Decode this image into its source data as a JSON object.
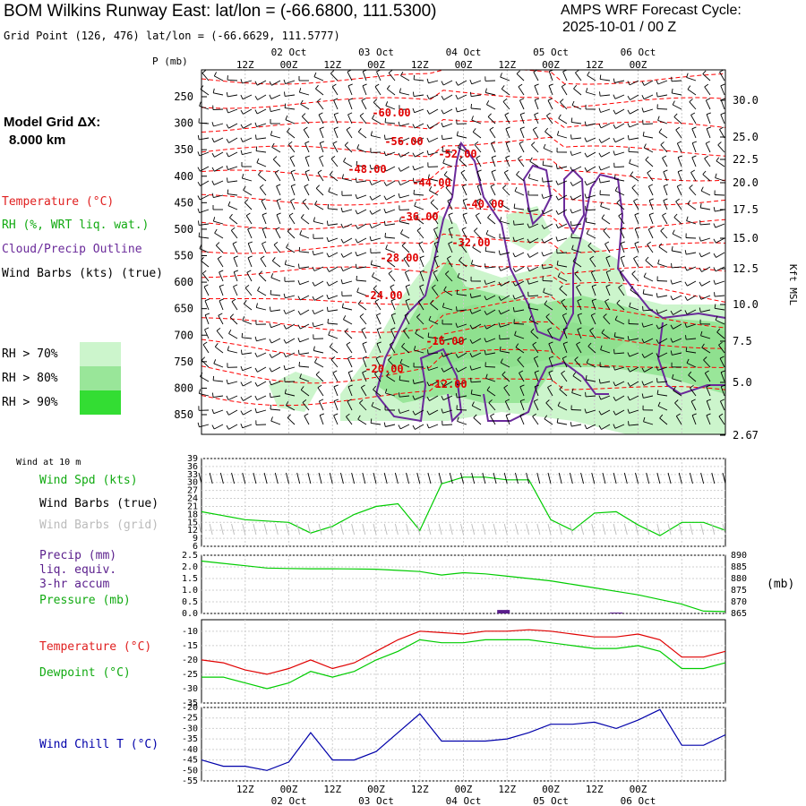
{
  "header": {
    "title": "BOM Wilkins Runway East:  lat/lon = (-66.6800, 111.5300)",
    "subtitle": "Grid Point (126, 476) lat/lon = (-66.6629, 111.5777)",
    "forecast_line1": "AMPS WRF Forecast Cycle:",
    "forecast_line2": "2025-10-01 / 00  Z"
  },
  "model_grid": {
    "label": "Model Grid ΔX:",
    "value": "8.000 km"
  },
  "legend": {
    "temperature": "Temperature (°C)",
    "rh": "RH (%, WRT liq. wat.)",
    "cloud": "Cloud/Precip Outline",
    "wind": "Wind Barbs (kts) (true)",
    "rh70": "RH > 70%",
    "rh80": "RH > 80%",
    "rh90": "RH > 90%"
  },
  "colors": {
    "temperature": "#ff0000",
    "rh": "#00aa00",
    "cloud": "#6a2a9a",
    "precip": "#5a1e8c",
    "pressure": "#00cc00",
    "dewpoint": "#00cc00",
    "windchill": "#0000aa",
    "rh70": "#ccf5cc",
    "rh80": "#99e699",
    "rh90": "#33dd33"
  },
  "time_axis": {
    "hours_labels": [
      "12Z",
      "00Z",
      "12Z",
      "00Z",
      "12Z",
      "00Z",
      "12Z",
      "00Z",
      "12Z",
      "00Z"
    ],
    "day_labels": [
      "02 Oct",
      "03 Oct",
      "04 Oct",
      "05 Oct",
      "06 Oct"
    ]
  },
  "chart_data": [
    {
      "type": "contour",
      "name": "cross-section",
      "yaxis_label": "P (mb)",
      "pressure_ticks": [
        "250",
        "300",
        "350",
        "400",
        "450",
        "500",
        "550",
        "600",
        "650",
        "700",
        "750",
        "800",
        "850"
      ],
      "right_axis_label": "Kft MSL",
      "height_ticks": [
        "30.0",
        "25.0",
        "22.5",
        "20.0",
        "17.5",
        "15.0",
        "12.5",
        "10.0",
        "7.5",
        "5.0",
        "2.67"
      ],
      "temperature_labels": [
        "-60.00",
        "-56.00",
        "-52.00",
        "-48.00",
        "-44.00",
        "-40.00",
        "-36.00",
        "-32.00",
        "-28.00",
        "-24.00",
        "-16.00",
        "-20.00",
        "-12.00"
      ]
    },
    {
      "type": "line",
      "name": "wind",
      "title": "Wind at 10 m",
      "labels": [
        "Wind Spd (kts)",
        "Wind Barbs (true)",
        "Wind Barbs (grid)"
      ],
      "yticks": [
        "39",
        "36",
        "33",
        "30",
        "27",
        "24",
        "21",
        "18",
        "15",
        "12",
        "9",
        "6"
      ],
      "ylim": [
        6,
        39
      ],
      "x_hours": [
        0,
        6,
        12,
        18,
        24,
        30,
        36,
        42,
        48,
        54,
        60,
        66,
        72,
        78,
        84,
        90,
        96,
        102,
        108,
        114,
        120,
        126,
        132,
        138,
        144
      ],
      "wind_speed": [
        19,
        17.5,
        16,
        15.5,
        15,
        11,
        13.5,
        18,
        21,
        22,
        12,
        29.5,
        32,
        32,
        31,
        31,
        16,
        12,
        18.5,
        19,
        14,
        10,
        15,
        15,
        12
      ]
    },
    {
      "type": "line",
      "name": "precip-pressure",
      "labels": [
        "Precip (mm)",
        "liq. equiv.",
        "3-hr accum",
        "Pressure (mb)"
      ],
      "left_ticks": [
        "2.5",
        "2.0",
        "1.5",
        "1.0",
        "0.5",
        "0.0"
      ],
      "right_ticks": [
        "890",
        "885",
        "880",
        "875",
        "870",
        "865"
      ],
      "right_unit": "(mb)",
      "precip_ylim": [
        0,
        2.5
      ],
      "pressure_ylim": [
        865,
        890
      ],
      "x_hours": [
        0,
        6,
        12,
        18,
        24,
        30,
        36,
        42,
        48,
        54,
        60,
        66,
        72,
        78,
        84,
        90,
        96,
        102,
        108,
        114,
        120,
        126,
        132,
        138,
        144
      ],
      "pressure": [
        887.5,
        886.5,
        885.5,
        884.5,
        884.3,
        884.2,
        884.2,
        884.1,
        884,
        883.5,
        883,
        881.5,
        882.5,
        882,
        881,
        880,
        879,
        877.5,
        876,
        874.5,
        873,
        871,
        869,
        866,
        865.8
      ],
      "precip_bars": [
        {
          "x_hour": 83,
          "value": 0.15
        },
        {
          "x_hour": 114,
          "value": 0.04
        }
      ]
    },
    {
      "type": "line",
      "name": "temperature-dewpoint",
      "labels": [
        "Temperature (°C)",
        "Dewpoint (°C)"
      ],
      "yticks": [
        "-10",
        "-15",
        "-20",
        "-25",
        "-30",
        "-35"
      ],
      "ylim": [
        -35,
        -6
      ],
      "x_hours": [
        0,
        6,
        12,
        18,
        24,
        30,
        36,
        42,
        48,
        54,
        60,
        66,
        72,
        78,
        84,
        90,
        96,
        102,
        108,
        114,
        120,
        126,
        132,
        138,
        144
      ],
      "temperature": [
        -20,
        -21,
        -23.5,
        -25,
        -23,
        -20,
        -23,
        -21,
        -17,
        -13,
        -10,
        -10.5,
        -11,
        -10,
        -10,
        -9.5,
        -10,
        -11,
        -12,
        -12,
        -11,
        -13,
        -19,
        -19,
        -17
      ],
      "dewpoint": [
        -26,
        -26,
        -28,
        -30,
        -28,
        -24,
        -26,
        -24,
        -20,
        -17,
        -13,
        -14,
        -14,
        -13,
        -13,
        -13,
        -14,
        -15,
        -16,
        -16,
        -15,
        -17,
        -23,
        -23,
        -21
      ]
    },
    {
      "type": "line",
      "name": "wind-chill",
      "labels": [
        "Wind Chill T (°C)"
      ],
      "yticks": [
        "-20",
        "-25",
        "-30",
        "-35",
        "-40",
        "-45",
        "-50",
        "-55"
      ],
      "ylim": [
        -55,
        -20
      ],
      "x_hours": [
        0,
        6,
        12,
        18,
        24,
        30,
        36,
        42,
        48,
        54,
        60,
        66,
        72,
        78,
        84,
        90,
        96,
        102,
        108,
        114,
        120,
        126,
        132,
        138,
        144
      ],
      "wind_chill": [
        -45,
        -48,
        -48,
        -50,
        -46,
        -32,
        -45,
        -45,
        -41,
        -32,
        -23,
        -36,
        -36,
        -36,
        -35,
        -32,
        -28,
        -28,
        -27,
        -30,
        -26,
        -21,
        -38,
        -38,
        -33
      ]
    }
  ]
}
